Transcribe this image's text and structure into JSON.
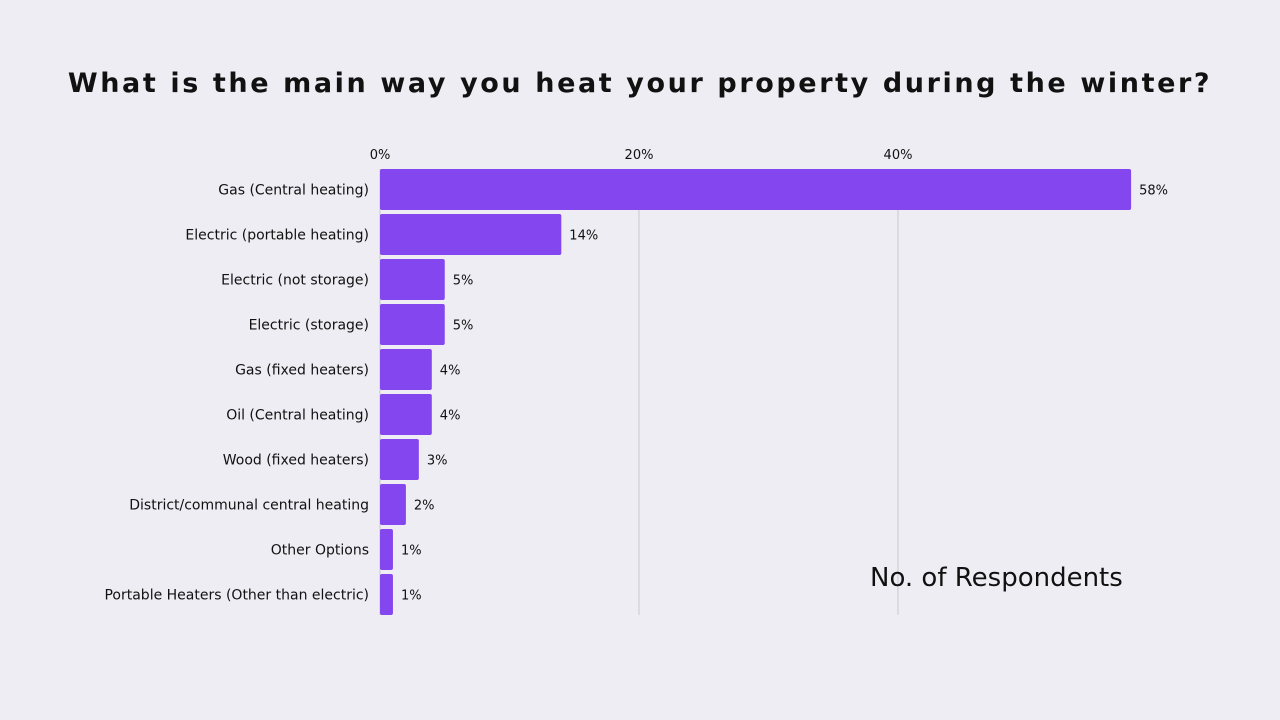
{
  "chart_data": {
    "type": "bar",
    "orientation": "horizontal",
    "title": "What is the main way you heat your property during the winter?",
    "annotation": "No. of Respondents",
    "categories": [
      "Gas (Central heating)",
      "Electric (portable heating)",
      "Electric (not storage)",
      "Electric (storage)",
      "Gas (fixed heaters)",
      "Oil (Central heating)",
      "Wood (fixed heaters)",
      "District/communal central heating",
      "Other Options",
      "Portable Heaters (Other than electric)"
    ],
    "values": [
      58,
      14,
      5,
      5,
      4,
      4,
      3,
      2,
      1,
      1
    ],
    "value_labels": [
      "58%",
      "14%",
      "5%",
      "5%",
      "4%",
      "4%",
      "3%",
      "2%",
      "1%",
      "1%"
    ],
    "xticks": [
      0,
      20,
      40
    ],
    "xtick_labels": [
      "0%",
      "20%",
      "40%"
    ],
    "xlim": [
      0,
      58
    ],
    "grid": true,
    "axis_position": "top",
    "bar_color": "#8446ee",
    "grid_color": "#cfcfd6",
    "background": "#eeedf3"
  }
}
